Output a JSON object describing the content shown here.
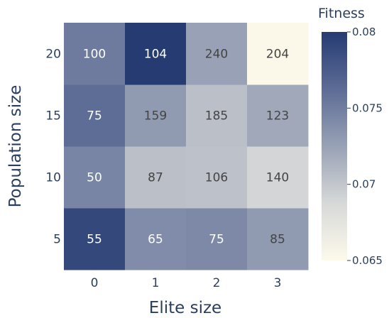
{
  "chart_data": {
    "type": "heatmap",
    "xlabel": "Elite size",
    "ylabel": "Population size",
    "x_categories": [
      "0",
      "1",
      "2",
      "3"
    ],
    "y_categories": [
      "5",
      "10",
      "15",
      "20"
    ],
    "labels": [
      [
        "55",
        "65",
        "75",
        "85"
      ],
      [
        "50",
        "87",
        "106",
        "140"
      ],
      [
        "75",
        "159",
        "185",
        "123"
      ],
      [
        "100",
        "104",
        "240",
        "204"
      ]
    ],
    "z": [
      [
        0.079,
        0.074,
        0.0742,
        0.073
      ],
      [
        0.0745,
        0.0705,
        0.0703,
        0.069
      ],
      [
        0.0762,
        0.073,
        0.0705,
        0.072
      ],
      [
        0.0752,
        0.08,
        0.0725,
        0.0652
      ]
    ],
    "colorbar": {
      "title": "Fitness",
      "min": 0.065,
      "max": 0.08,
      "tick_values": [
        0.065,
        0.07,
        0.075,
        0.08
      ],
      "tick_labels": [
        "0.065",
        "0.07",
        "0.075",
        "0.08"
      ],
      "colorscale": [
        "#fdfaeb",
        "#d7d9d8",
        "#98a1b5",
        "#5d6c96",
        "#253b72"
      ]
    },
    "label_colors": {
      "light": "#ffffff",
      "dark": "#444444"
    }
  }
}
